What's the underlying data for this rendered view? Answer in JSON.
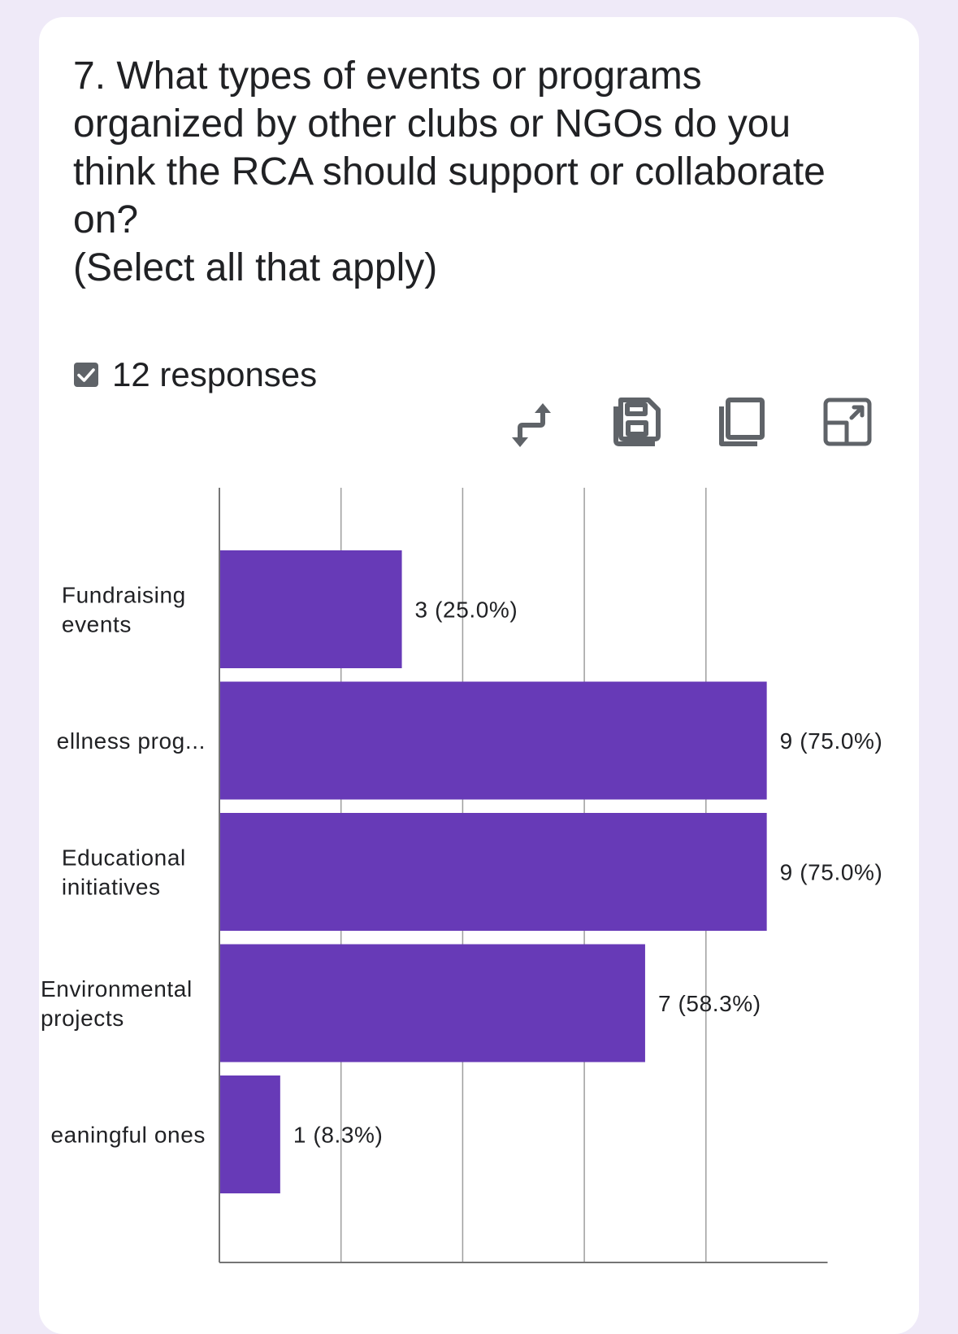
{
  "question": {
    "lines": [
      "7. What types of events or programs",
      "organized by other clubs or NGOs do you",
      "think the RCA should support or collaborate",
      "on?",
      "(Select all that apply)"
    ]
  },
  "responses": {
    "count_label": "12 responses"
  },
  "toolbar": {
    "icons": [
      "swap-icon",
      "save-icon",
      "copy-icon",
      "expand-icon"
    ]
  },
  "colors": {
    "bar": "#673ab7",
    "grid": "#9e9e9e",
    "page_background": "#efeaf8",
    "card": "#ffffff"
  },
  "chart_data": {
    "type": "bar",
    "orientation": "horizontal",
    "categories": [
      [
        "Fundraising",
        "events"
      ],
      [
        "ellness prog..."
      ],
      [
        "Educational",
        "initiatives"
      ],
      [
        "Environmental",
        "projects"
      ],
      [
        "eaningful ones"
      ]
    ],
    "values": [
      3,
      9,
      9,
      7,
      1
    ],
    "value_labels": [
      "3 (25.0%)",
      "9 (75.0%)",
      "9 (75.0%)",
      "7 (58.3%)",
      "1 (8.3%)"
    ],
    "xlim": [
      0,
      10
    ],
    "grid_step": 2,
    "title": "",
    "xlabel": "",
    "ylabel": ""
  }
}
